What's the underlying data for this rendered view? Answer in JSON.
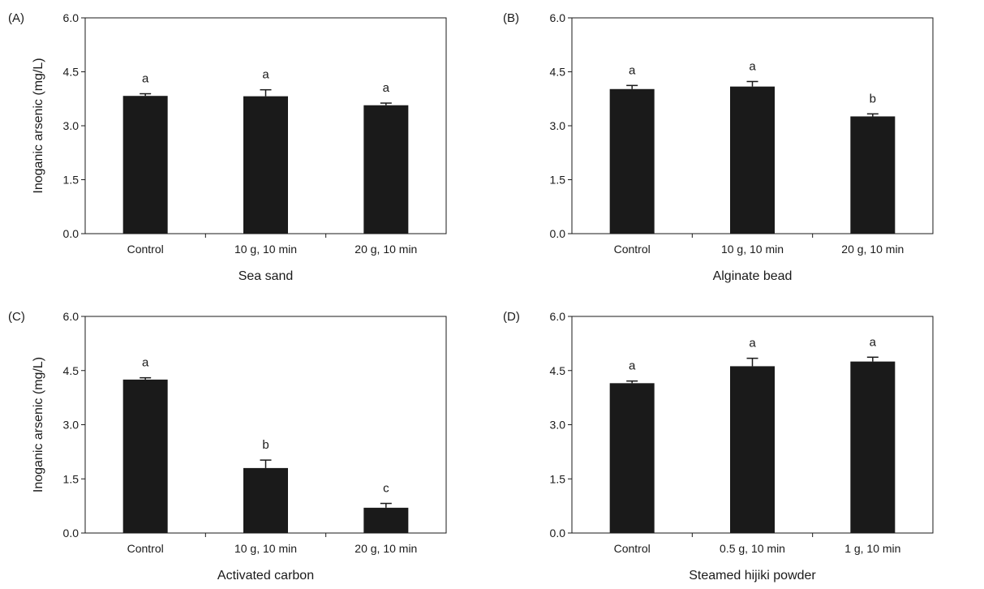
{
  "chart_data": [
    {
      "type": "bar",
      "panel_label": "(A)",
      "categories": [
        "Control",
        "10 g, 10 min",
        "20 g, 10 min"
      ],
      "values": [
        3.83,
        3.82,
        3.57
      ],
      "errors": [
        0.06,
        0.18,
        0.06
      ],
      "significance": [
        "a",
        "a",
        "a"
      ],
      "xlabel": "Sea sand",
      "ylabel": "Inoganic arsenic (mg/L)",
      "ylim": [
        0,
        6
      ],
      "yticks": [
        "0.0",
        "1.5",
        "3.0",
        "4.5",
        "6.0"
      ],
      "bar_color": "#1a1a1a"
    },
    {
      "type": "bar",
      "panel_label": "(B)",
      "categories": [
        "Control",
        "10 g, 10 min",
        "20 g, 10 min"
      ],
      "values": [
        4.02,
        4.09,
        3.26
      ],
      "errors": [
        0.1,
        0.14,
        0.07
      ],
      "significance": [
        "a",
        "a",
        "b"
      ],
      "xlabel": "Alginate bead",
      "ylabel": "",
      "ylim": [
        0,
        6
      ],
      "yticks": [
        "0.0",
        "1.5",
        "3.0",
        "4.5",
        "6.0"
      ],
      "bar_color": "#1a1a1a"
    },
    {
      "type": "bar",
      "panel_label": "(C)",
      "categories": [
        "Control",
        "10 g, 10 min",
        "20 g, 10 min"
      ],
      "values": [
        4.25,
        1.8,
        0.7
      ],
      "errors": [
        0.05,
        0.22,
        0.12
      ],
      "significance": [
        "a",
        "b",
        "c"
      ],
      "xlabel": "Activated carbon",
      "ylabel": "Inoganic arsenic (mg/L)",
      "ylim": [
        0,
        6
      ],
      "yticks": [
        "0.0",
        "1.5",
        "3.0",
        "4.5",
        "6.0"
      ],
      "bar_color": "#1a1a1a"
    },
    {
      "type": "bar",
      "panel_label": "(D)",
      "categories": [
        "Control",
        "0.5 g, 10 min",
        "1 g, 10 min"
      ],
      "values": [
        4.15,
        4.62,
        4.75
      ],
      "errors": [
        0.06,
        0.22,
        0.12
      ],
      "significance": [
        "a",
        "a",
        "a"
      ],
      "xlabel": "Steamed hijiki powder",
      "ylabel": "",
      "ylim": [
        0,
        6
      ],
      "yticks": [
        "0.0",
        "1.5",
        "3.0",
        "4.5",
        "6.0"
      ],
      "bar_color": "#1a1a1a"
    }
  ]
}
